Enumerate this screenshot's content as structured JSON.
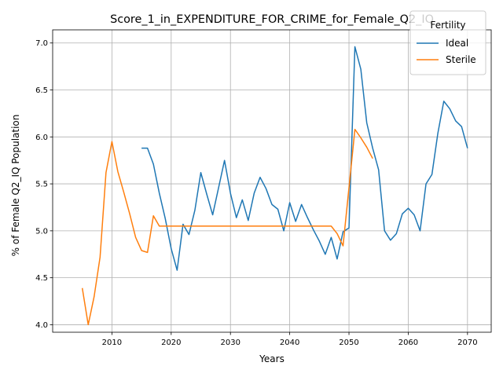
{
  "chart_data": {
    "type": "line",
    "title": "Score_1_in_EXPENDITURE_FOR_CRIME_for_Female_Q2_IQ",
    "xlabel": "Years",
    "ylabel": "% of Female Q2_IQ Population",
    "xlim": [
      2000,
      2074
    ],
    "ylim": [
      3.92,
      7.14
    ],
    "xticks": [
      2010,
      2020,
      2030,
      2040,
      2050,
      2060,
      2070
    ],
    "yticks": [
      4.0,
      4.5,
      5.0,
      5.5,
      6.0,
      6.5,
      7.0
    ],
    "ytick_labels": [
      "4.0",
      "4.5",
      "5.0",
      "5.5",
      "6.0",
      "6.5",
      "7.0"
    ],
    "grid": true,
    "legend": {
      "title": "Fertility",
      "placement": "top-right"
    },
    "series": [
      {
        "name": "Ideal",
        "color": "#1f77b4",
        "points": [
          [
            2015,
            5.88
          ],
          [
            2016,
            5.88
          ],
          [
            2017,
            5.71
          ],
          [
            2018,
            5.4
          ],
          [
            2019,
            5.13
          ],
          [
            2020,
            4.81
          ],
          [
            2021,
            4.58
          ],
          [
            2022,
            5.07
          ],
          [
            2023,
            4.96
          ],
          [
            2024,
            5.22
          ],
          [
            2025,
            5.62
          ],
          [
            2026,
            5.39
          ],
          [
            2027,
            5.17
          ],
          [
            2028,
            5.46
          ],
          [
            2029,
            5.75
          ],
          [
            2030,
            5.4
          ],
          [
            2031,
            5.14
          ],
          [
            2032,
            5.33
          ],
          [
            2033,
            5.11
          ],
          [
            2034,
            5.4
          ],
          [
            2035,
            5.57
          ],
          [
            2036,
            5.45
          ],
          [
            2037,
            5.28
          ],
          [
            2038,
            5.23
          ],
          [
            2039,
            5.0
          ],
          [
            2040,
            5.3
          ],
          [
            2041,
            5.1
          ],
          [
            2042,
            5.28
          ],
          [
            2043,
            5.14
          ],
          [
            2044,
            5.01
          ],
          [
            2045,
            4.89
          ],
          [
            2046,
            4.75
          ],
          [
            2047,
            4.93
          ],
          [
            2048,
            4.7
          ],
          [
            2049,
            4.99
          ],
          [
            2050,
            5.03
          ],
          [
            2051,
            6.96
          ],
          [
            2052,
            6.72
          ],
          [
            2053,
            6.15
          ],
          [
            2054,
            5.88
          ],
          [
            2055,
            5.65
          ],
          [
            2056,
            5.0
          ],
          [
            2057,
            4.9
          ],
          [
            2058,
            4.97
          ],
          [
            2059,
            5.18
          ],
          [
            2060,
            5.24
          ],
          [
            2061,
            5.17
          ],
          [
            2062,
            5.0
          ],
          [
            2063,
            5.5
          ],
          [
            2064,
            5.6
          ],
          [
            2065,
            6.04
          ],
          [
            2066,
            6.38
          ],
          [
            2067,
            6.3
          ],
          [
            2068,
            6.17
          ],
          [
            2069,
            6.11
          ],
          [
            2070,
            5.88
          ]
        ]
      },
      {
        "name": "Sterile",
        "color": "#ff7f0e",
        "points": [
          [
            2005,
            4.39
          ],
          [
            2006,
            4.0
          ],
          [
            2007,
            4.3
          ],
          [
            2008,
            4.72
          ],
          [
            2009,
            5.62
          ],
          [
            2010,
            5.95
          ],
          [
            2011,
            5.63
          ],
          [
            2012,
            5.41
          ],
          [
            2013,
            5.18
          ],
          [
            2014,
            4.93
          ],
          [
            2015,
            4.79
          ],
          [
            2016,
            4.77
          ],
          [
            2017,
            5.16
          ],
          [
            2018,
            5.05
          ],
          [
            2019,
            5.05
          ],
          [
            2020,
            5.05
          ],
          [
            2025,
            5.05
          ],
          [
            2030,
            5.05
          ],
          [
            2035,
            5.05
          ],
          [
            2040,
            5.05
          ],
          [
            2045,
            5.05
          ],
          [
            2047,
            5.05
          ],
          [
            2048,
            4.97
          ],
          [
            2049,
            4.84
          ],
          [
            2050,
            5.46
          ],
          [
            2051,
            6.08
          ],
          [
            2052,
            5.99
          ],
          [
            2053,
            5.89
          ],
          [
            2054,
            5.77
          ]
        ]
      }
    ]
  }
}
